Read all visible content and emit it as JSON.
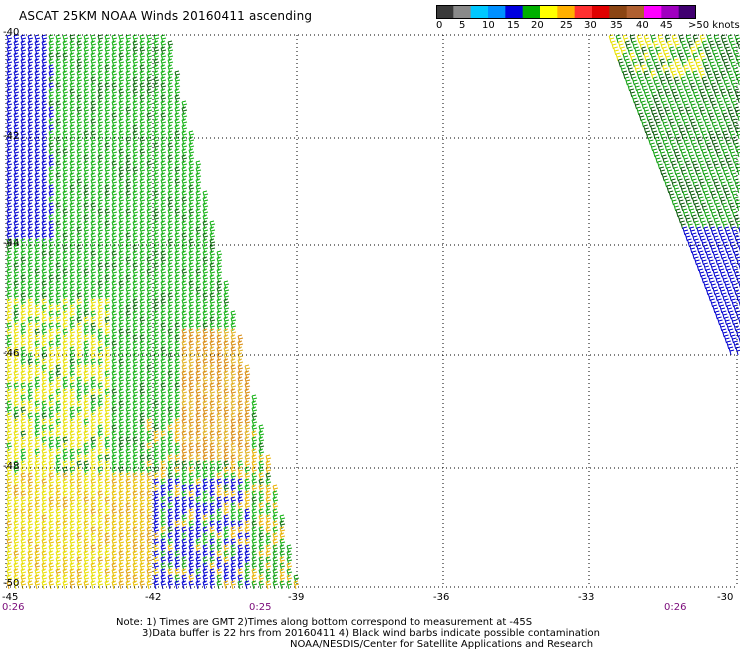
{
  "title": "ASCAT 25KM NOAA Winds 20160411 ascending",
  "colorbar": {
    "labels": [
      "0",
      "5",
      "10",
      "15",
      "20",
      "25",
      "30",
      "35",
      "40",
      "45",
      ">50 knots"
    ],
    "colors": [
      "#3a3a3a",
      "#8a8a8a",
      "#00c8ff",
      "#0090ff",
      "#0000e0",
      "#00b000",
      "#ffff00",
      "#ffb000",
      "#ff3030",
      "#e00000",
      "#8b4513",
      "#b06030",
      "#ff00ff",
      "#a000c0",
      "#400070"
    ]
  },
  "axes": {
    "lat_labels": [
      "-40",
      "-42",
      "-44",
      "-46",
      "-48",
      "-50"
    ],
    "lon_labels": [
      "-45",
      "-42",
      "-39",
      "-36",
      "-33",
      "-30"
    ]
  },
  "times": {
    "left": "0:26",
    "middle": "0:25",
    "right": "0:26"
  },
  "notes": {
    "line1": "Note: 1) Times are GMT 2)Times along bottom correspond to measurement at -45S",
    "line2": "3)Data buffer is 22 hrs from 20160411 4) Black wind barbs indicate possible contamination",
    "line3": "NOAA/NESDIS/Center for Satellite Applications and Research"
  }
}
